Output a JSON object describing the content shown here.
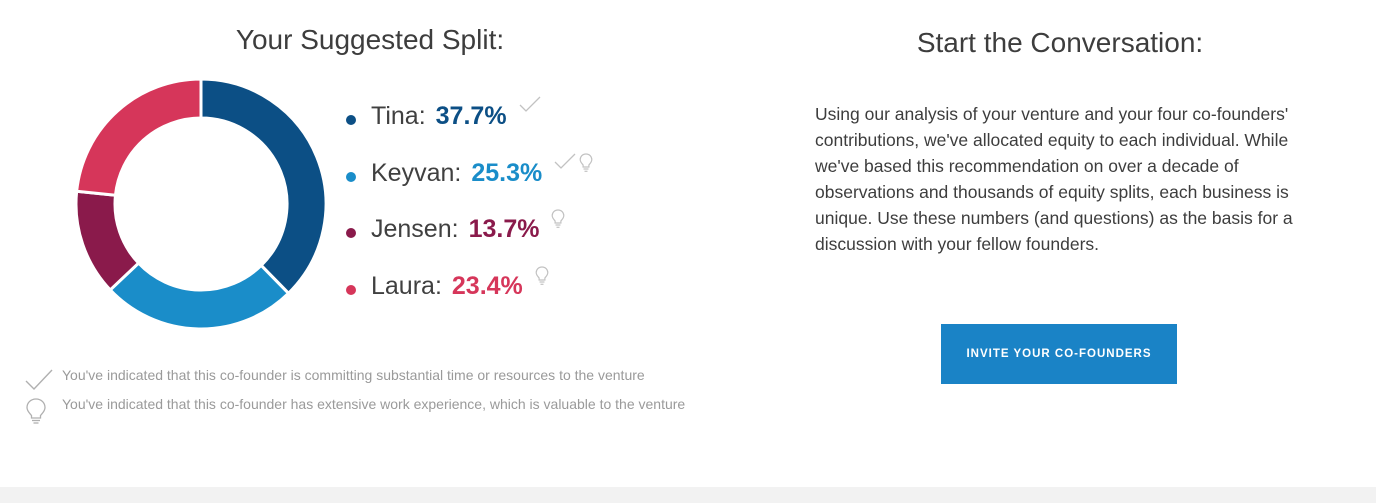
{
  "split": {
    "title": "Your Suggested Split:",
    "founders": [
      {
        "name": "Tina:",
        "percent": "37.7%",
        "value": 37.7,
        "color": "#0c4f85",
        "icons": [
          "check-icon"
        ]
      },
      {
        "name": "Keyvan:",
        "percent": "25.3%",
        "value": 25.3,
        "color": "#1a8dc9",
        "icons": [
          "check-icon",
          "lightbulb-icon"
        ]
      },
      {
        "name": "Jensen:",
        "percent": "13.7%",
        "value": 13.7,
        "color": "#8a1a4b",
        "icons": [
          "lightbulb-icon"
        ]
      },
      {
        "name": "Laura:",
        "percent": "23.4%",
        "value": 23.4,
        "color": "#d6365a",
        "icons": [
          "lightbulb-icon"
        ]
      }
    ],
    "notes": {
      "commitment": "You've indicated that this co-founder is committing substantial time or resources to the venture",
      "experience": "You've indicated that this co-founder has extensive work experience, which is valuable to the venture"
    }
  },
  "conversation": {
    "title": "Start the Conversation:",
    "body": "Using our analysis of your venture and your four co-founders' contributions, we've allocated equity to each individual. While we've based this recommendation on over a decade of observations and thousands of equity splits, each business is unique. Use these numbers (and questions) as the basis for a discussion with your fellow founders.",
    "invite_label": "INVITE YOUR CO-FOUNDERS"
  },
  "colors": {
    "accent_button": "#1a83c6",
    "icon_gray": "#c2c2c2",
    "footer_band": "#f2f2f2"
  }
}
